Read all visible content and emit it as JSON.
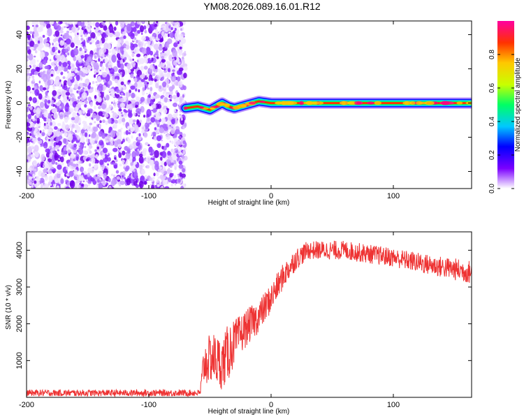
{
  "figure": {
    "title": "YM08.2026.089.16.01.R12"
  },
  "chart_data": [
    {
      "type": "heatmap",
      "name": "spectrogram",
      "xlabel": "Height of straight line (km)",
      "ylabel": "Frequency (Hz)",
      "xlim": [
        -200,
        164
      ],
      "ylim": [
        -50,
        48
      ],
      "x_ticks": [
        "-200",
        "-100",
        "0",
        "100"
      ],
      "y_ticks": [
        "-40",
        "-20",
        "0",
        "20",
        "40"
      ],
      "noise_region": {
        "x_start": -200,
        "x_end": -70,
        "level": "low-moderate, scattered violet speckle"
      },
      "signal_ridge": [
        {
          "x": -70,
          "freq": -3
        },
        {
          "x": -60,
          "freq": -2
        },
        {
          "x": -50,
          "freq": -4
        },
        {
          "x": -45,
          "freq": -2
        },
        {
          "x": -40,
          "freq": 0
        },
        {
          "x": -35,
          "freq": -2
        },
        {
          "x": -30,
          "freq": -3
        },
        {
          "x": -20,
          "freq": -1
        },
        {
          "x": -10,
          "freq": 1
        },
        {
          "x": 0,
          "freq": 0
        },
        {
          "x": 50,
          "freq": 0
        },
        {
          "x": 100,
          "freq": 0
        },
        {
          "x": 164,
          "freq": 0
        }
      ],
      "colorbar": {
        "label": "Normalized spectral amplitude",
        "range": [
          0.0,
          1.0
        ],
        "ticks": [
          "0.0",
          "0.2",
          "0.4",
          "0.6",
          "0.8"
        ],
        "colormap": [
          "#ffffff",
          "#7b00ff",
          "#0000ff",
          "#00c8ff",
          "#00ff64",
          "#c8ff00",
          "#ffc800",
          "#ff3200",
          "#ff00a0"
        ]
      }
    },
    {
      "type": "line",
      "name": "snr",
      "xlabel": "Height of straight line (km)",
      "ylabel": "SNR (10 * v/v)",
      "xlim": [
        -200,
        164
      ],
      "ylim": [
        0,
        4500
      ],
      "x_ticks": [
        "-200",
        "-100",
        "0",
        "100"
      ],
      "y_ticks": [
        "1000",
        "2000",
        "3000",
        "4000"
      ],
      "color": "#ee3333",
      "envelope": [
        {
          "x": -200,
          "mean": 120,
          "amp": 90
        },
        {
          "x": -58,
          "mean": 120,
          "amp": 90
        },
        {
          "x": -55,
          "mean": 900,
          "amp": 600
        },
        {
          "x": -48,
          "mean": 1100,
          "amp": 700
        },
        {
          "x": -40,
          "mean": 900,
          "amp": 700
        },
        {
          "x": -34,
          "mean": 1300,
          "amp": 800
        },
        {
          "x": -30,
          "mean": 1500,
          "amp": 600
        },
        {
          "x": -20,
          "mean": 1900,
          "amp": 500
        },
        {
          "x": -10,
          "mean": 2200,
          "amp": 450
        },
        {
          "x": 0,
          "mean": 2700,
          "amp": 400
        },
        {
          "x": 10,
          "mean": 3300,
          "amp": 350
        },
        {
          "x": 20,
          "mean": 3750,
          "amp": 300
        },
        {
          "x": 30,
          "mean": 4000,
          "amp": 250
        },
        {
          "x": 60,
          "mean": 4000,
          "amp": 260
        },
        {
          "x": 100,
          "mean": 3800,
          "amp": 260
        },
        {
          "x": 130,
          "mean": 3600,
          "amp": 280
        },
        {
          "x": 164,
          "mean": 3400,
          "amp": 320
        }
      ]
    }
  ]
}
